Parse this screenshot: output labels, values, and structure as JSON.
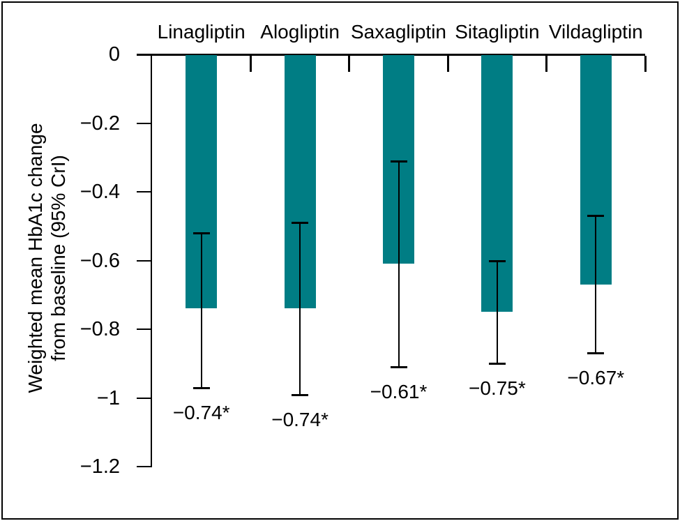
{
  "figure": {
    "background_color": "#ffffff",
    "border_color": "#000000",
    "bar_color": "#007d84",
    "axis_color": "#000000"
  },
  "y_axis_title": {
    "line1": "Weighted mean HbA1c change",
    "line2": "from baseline (95% CrI)"
  },
  "chart_data": {
    "type": "bar",
    "title": "",
    "xlabel": "",
    "ylabel": "Weighted mean HbA1c change from baseline (95% CrI)",
    "categories": [
      "Linagliptin",
      "Alogliptin",
      "Saxagliptin",
      "Sitagliptin",
      "Vildagliptin"
    ],
    "values": [
      -0.74,
      -0.74,
      -0.61,
      -0.75,
      -0.67
    ],
    "ci": [
      [
        -0.52,
        -0.97
      ],
      [
        -0.49,
        -0.99
      ],
      [
        -0.31,
        -0.91
      ],
      [
        -0.6,
        -0.9
      ],
      [
        -0.47,
        -0.87
      ]
    ],
    "value_labels": [
      "−0.74*",
      "−0.74*",
      "−0.61*",
      "−0.75*",
      "−0.67*"
    ],
    "yticks": [
      0,
      -0.2,
      -0.4,
      -0.6,
      -0.8,
      -1,
      -1.2
    ],
    "ytick_labels": [
      "0",
      "−0.2",
      "−0.4",
      "−0.6",
      "−0.8",
      "−1",
      "−1.2"
    ],
    "ylim": [
      0,
      -1.2
    ],
    "grid": false,
    "legend": "none",
    "bar_color": "#007d84",
    "error_bar_color": "#000000",
    "category_labels_position": "top",
    "significance_marker": "*"
  }
}
